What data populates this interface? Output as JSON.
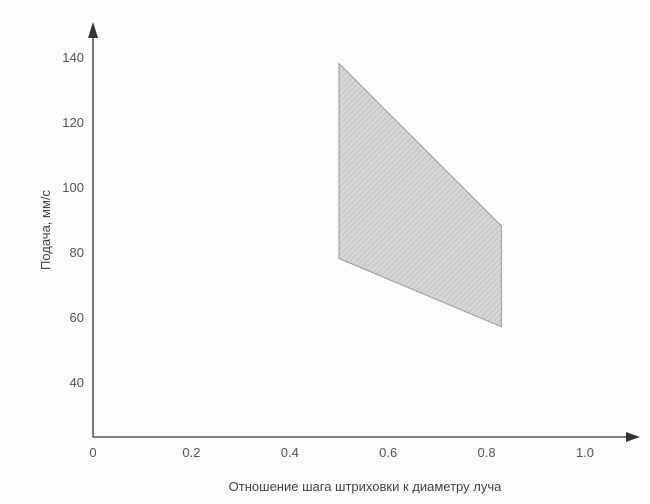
{
  "chart_data": {
    "type": "area",
    "title": "",
    "xlabel": "Отношение шага штриховки к диаметру луча",
    "ylabel": "Подача, мм/с",
    "xlim": [
      0,
      1.0
    ],
    "ylim": [
      25,
      140
    ],
    "x_ticks": [
      "0",
      "0.2",
      "0.4",
      "0.6",
      "0.8",
      "1.0"
    ],
    "x_tick_values": [
      0,
      0.2,
      0.4,
      0.6,
      0.8,
      1.0
    ],
    "y_ticks": [
      "40",
      "60",
      "80",
      "100",
      "120",
      "140"
    ],
    "y_tick_values": [
      40,
      60,
      80,
      100,
      120,
      140
    ],
    "grid": false,
    "legend": "none",
    "region": {
      "x": [
        0.5,
        0.83,
        0.83,
        0.5
      ],
      "y": [
        138,
        88,
        57,
        78
      ]
    },
    "colors": {
      "region_fill": "#d2d2d2",
      "region_hatch": "#b4b4b4",
      "axis": "#333333"
    }
  }
}
